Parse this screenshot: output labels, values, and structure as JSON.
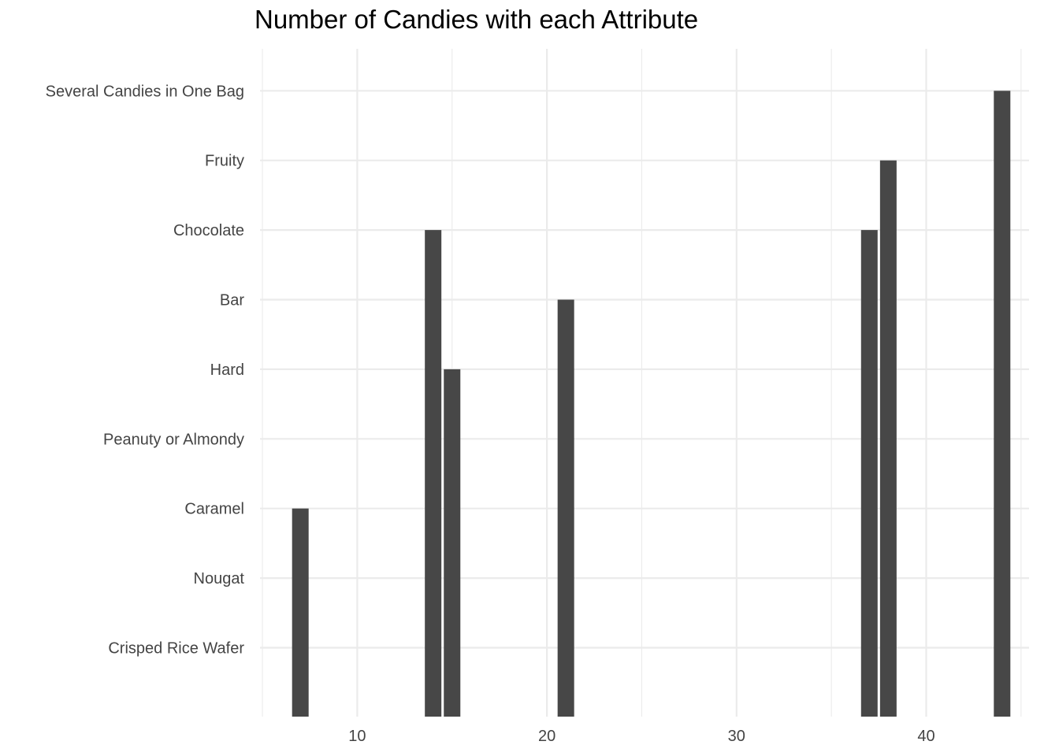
{
  "chart_data": {
    "type": "bar",
    "title": "Number of Candies with each Attribute",
    "xlabel": "",
    "ylabel": "",
    "y_categories": [
      "Crisped Rice Wafer",
      "Nougat",
      "Caramel",
      "Peanuty or Almondy",
      "Hard",
      "Bar",
      "Chocolate",
      "Fruity",
      "Several Candies in One Bag"
    ],
    "x_ticks": [
      10,
      20,
      30,
      40
    ],
    "xlim": [
      5,
      45
    ],
    "grid": true,
    "bar_color": "#474747",
    "bars": [
      {
        "x": 7,
        "top_category": "Caramel"
      },
      {
        "x": 14,
        "top_category": "Chocolate"
      },
      {
        "x": 15,
        "top_category": "Hard"
      },
      {
        "x": 21,
        "top_category": "Bar"
      },
      {
        "x": 37,
        "top_category": "Chocolate"
      },
      {
        "x": 38,
        "top_category": "Fruity"
      },
      {
        "x": 44,
        "top_category": "Several Candies in One Bag"
      }
    ]
  }
}
